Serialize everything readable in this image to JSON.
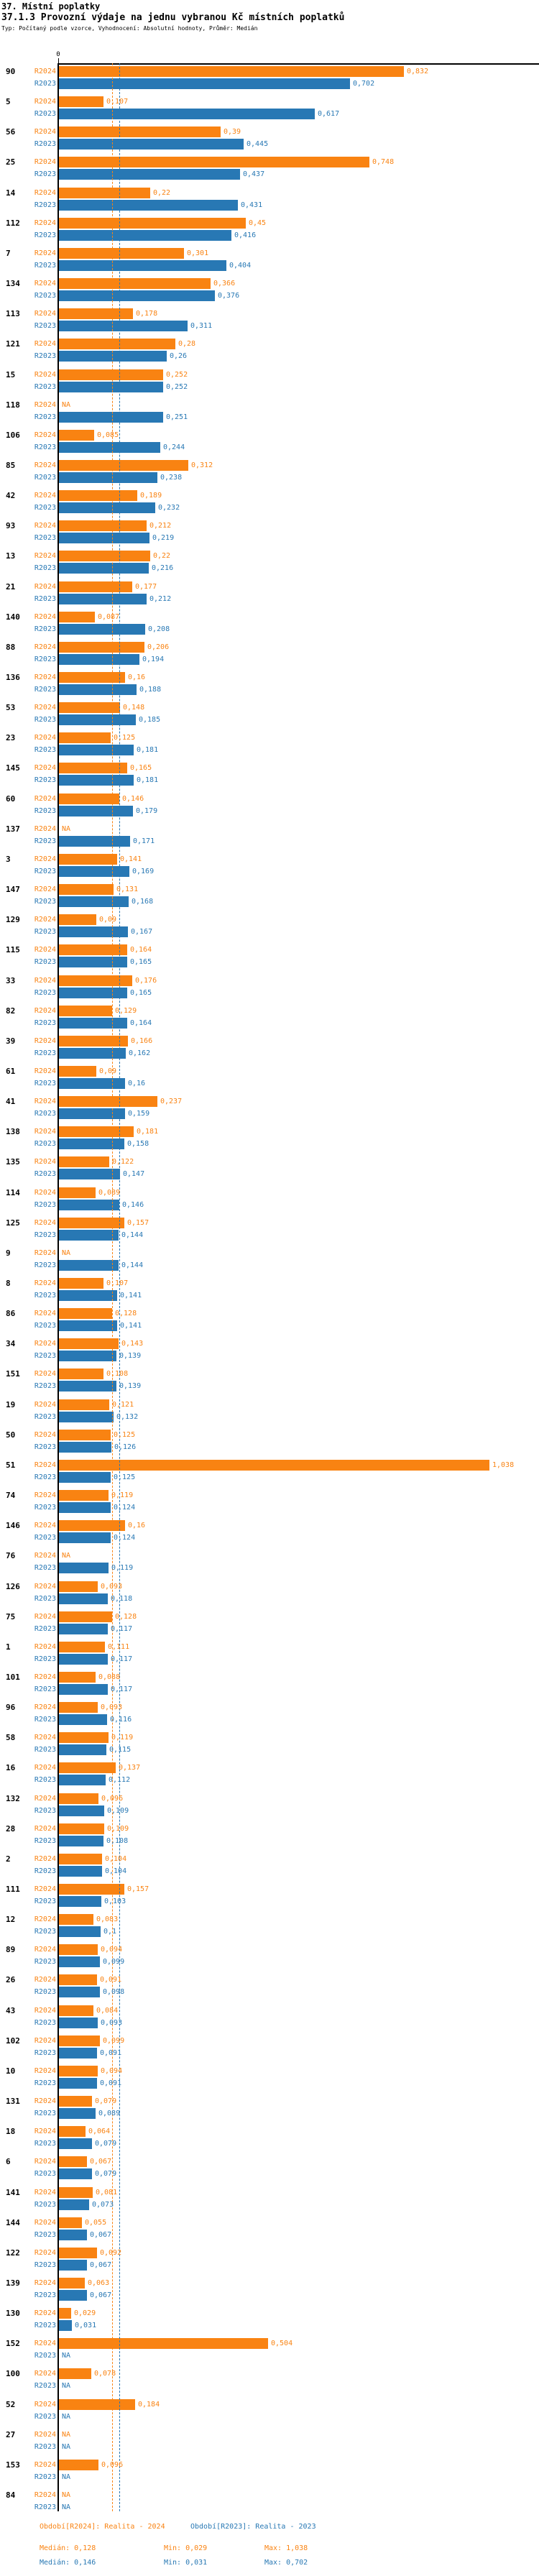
{
  "chart_data": {
    "type": "bar",
    "orientation": "horizontal",
    "title": "37. Místní poplatky",
    "subtitle": "37.1.3 Provozní výdaje na jednu vybranou Kč místních poplatků",
    "meta": "Typ: Počítaný podle vzorce, Vyhodnocení: Absolutní hodnoty, Průměr: Medián",
    "axis_origin": "0",
    "na_label": "NA",
    "series": [
      {
        "id": "R2024",
        "label": "R2024",
        "color": "#F98312",
        "period_text": "Období[R2024]: Realita - 2024",
        "median_text": "Medián: 0,128",
        "min_text": "Min: 0,029",
        "max_text": "Max: 1,038",
        "median_value": 0.128
      },
      {
        "id": "R2023",
        "label": "R2023",
        "color": "#2878B4",
        "period_text": "Období[R2023]: Realita - 2023",
        "median_text": "Medián: 0,146",
        "min_text": "Min: 0,031",
        "max_text": "Max: 0,702",
        "median_value": 0.146
      }
    ],
    "rows": [
      {
        "id": "90",
        "r2024": "0,832",
        "r2023": "0,702"
      },
      {
        "id": "5",
        "r2024": "0,107",
        "r2023": "0,617"
      },
      {
        "id": "56",
        "r2024": "0,39",
        "r2023": "0,445"
      },
      {
        "id": "25",
        "r2024": "0,748",
        "r2023": "0,437"
      },
      {
        "id": "14",
        "r2024": "0,22",
        "r2023": "0,431"
      },
      {
        "id": "112",
        "r2024": "0,45",
        "r2023": "0,416"
      },
      {
        "id": "7",
        "r2024": "0,301",
        "r2023": "0,404"
      },
      {
        "id": "134",
        "r2024": "0,366",
        "r2023": "0,376"
      },
      {
        "id": "113",
        "r2024": "0,178",
        "r2023": "0,311"
      },
      {
        "id": "121",
        "r2024": "0,28",
        "r2023": "0,26"
      },
      {
        "id": "15",
        "r2024": "0,252",
        "r2023": "0,252"
      },
      {
        "id": "118",
        "r2024": "NA",
        "r2023": "0,251"
      },
      {
        "id": "106",
        "r2024": "0,085",
        "r2023": "0,244"
      },
      {
        "id": "85",
        "r2024": "0,312",
        "r2023": "0,238"
      },
      {
        "id": "42",
        "r2024": "0,189",
        "r2023": "0,232"
      },
      {
        "id": "93",
        "r2024": "0,212",
        "r2023": "0,219"
      },
      {
        "id": "13",
        "r2024": "0,22",
        "r2023": "0,216"
      },
      {
        "id": "21",
        "r2024": "0,177",
        "r2023": "0,212"
      },
      {
        "id": "140",
        "r2024": "0,087",
        "r2023": "0,208"
      },
      {
        "id": "88",
        "r2024": "0,206",
        "r2023": "0,194"
      },
      {
        "id": "136",
        "r2024": "0,16",
        "r2023": "0,188"
      },
      {
        "id": "53",
        "r2024": "0,148",
        "r2023": "0,185"
      },
      {
        "id": "23",
        "r2024": "0,125",
        "r2023": "0,181"
      },
      {
        "id": "145",
        "r2024": "0,165",
        "r2023": "0,181"
      },
      {
        "id": "60",
        "r2024": "0,146",
        "r2023": "0,179"
      },
      {
        "id": "137",
        "r2024": "NA",
        "r2023": "0,171"
      },
      {
        "id": "3",
        "r2024": "0,141",
        "r2023": "0,169"
      },
      {
        "id": "147",
        "r2024": "0,131",
        "r2023": "0,168"
      },
      {
        "id": "129",
        "r2024": "0,09",
        "r2023": "0,167"
      },
      {
        "id": "115",
        "r2024": "0,164",
        "r2023": "0,165"
      },
      {
        "id": "33",
        "r2024": "0,176",
        "r2023": "0,165"
      },
      {
        "id": "82",
        "r2024": "0,129",
        "r2023": "0,164"
      },
      {
        "id": "39",
        "r2024": "0,166",
        "r2023": "0,162"
      },
      {
        "id": "61",
        "r2024": "0,09",
        "r2023": "0,16"
      },
      {
        "id": "41",
        "r2024": "0,237",
        "r2023": "0,159"
      },
      {
        "id": "138",
        "r2024": "0,181",
        "r2023": "0,158"
      },
      {
        "id": "135",
        "r2024": "0,122",
        "r2023": "0,147"
      },
      {
        "id": "114",
        "r2024": "0,089",
        "r2023": "0,146"
      },
      {
        "id": "125",
        "r2024": "0,157",
        "r2023": "0,144"
      },
      {
        "id": "9",
        "r2024": "NA",
        "r2023": "0,144"
      },
      {
        "id": "8",
        "r2024": "0,107",
        "r2023": "0,141"
      },
      {
        "id": "86",
        "r2024": "0,128",
        "r2023": "0,141"
      },
      {
        "id": "34",
        "r2024": "0,143",
        "r2023": "0,139"
      },
      {
        "id": "151",
        "r2024": "0,108",
        "r2023": "0,139"
      },
      {
        "id": "19",
        "r2024": "0,121",
        "r2023": "0,132"
      },
      {
        "id": "50",
        "r2024": "0,125",
        "r2023": "0,126"
      },
      {
        "id": "51",
        "r2024": "1,038",
        "r2023": "0,125"
      },
      {
        "id": "74",
        "r2024": "0,119",
        "r2023": "0,124"
      },
      {
        "id": "146",
        "r2024": "0,16",
        "r2023": "0,124"
      },
      {
        "id": "76",
        "r2024": "NA",
        "r2023": "0,119"
      },
      {
        "id": "126",
        "r2024": "0,093",
        "r2023": "0,118"
      },
      {
        "id": "75",
        "r2024": "0,128",
        "r2023": "0,117"
      },
      {
        "id": "1",
        "r2024": "0,111",
        "r2023": "0,117"
      },
      {
        "id": "101",
        "r2024": "0,088",
        "r2023": "0,117"
      },
      {
        "id": "96",
        "r2024": "0,093",
        "r2023": "0,116"
      },
      {
        "id": "58",
        "r2024": "0,119",
        "r2023": "0,115"
      },
      {
        "id": "16",
        "r2024": "0,137",
        "r2023": "0,112"
      },
      {
        "id": "132",
        "r2024": "0,096",
        "r2023": "0,109"
      },
      {
        "id": "28",
        "r2024": "0,109",
        "r2023": "0,108"
      },
      {
        "id": "2",
        "r2024": "0,104",
        "r2023": "0,104"
      },
      {
        "id": "111",
        "r2024": "0,157",
        "r2023": "0,103"
      },
      {
        "id": "12",
        "r2024": "0,083",
        "r2023": "0,1"
      },
      {
        "id": "89",
        "r2024": "0,094",
        "r2023": "0,099"
      },
      {
        "id": "26",
        "r2024": "0,091",
        "r2023": "0,098"
      },
      {
        "id": "43",
        "r2024": "0,084",
        "r2023": "0,093"
      },
      {
        "id": "102",
        "r2024": "0,099",
        "r2023": "0,091"
      },
      {
        "id": "10",
        "r2024": "0,094",
        "r2023": "0,091"
      },
      {
        "id": "131",
        "r2024": "0,079",
        "r2023": "0,089"
      },
      {
        "id": "18",
        "r2024": "0,064",
        "r2023": "0,079"
      },
      {
        "id": "6",
        "r2024": "0,067",
        "r2023": "0,079"
      },
      {
        "id": "141",
        "r2024": "0,081",
        "r2023": "0,073"
      },
      {
        "id": "144",
        "r2024": "0,055",
        "r2023": "0,067"
      },
      {
        "id": "122",
        "r2024": "0,092",
        "r2023": "0,067"
      },
      {
        "id": "139",
        "r2024": "0,063",
        "r2023": "0,067"
      },
      {
        "id": "130",
        "r2024": "0,029",
        "r2023": "0,031"
      },
      {
        "id": "152",
        "r2024": "0,504",
        "r2023": "NA"
      },
      {
        "id": "100",
        "r2024": "0,078",
        "r2023": "NA"
      },
      {
        "id": "52",
        "r2024": "0,184",
        "r2023": "NA"
      },
      {
        "id": "27",
        "r2024": "NA",
        "r2023": "NA"
      },
      {
        "id": "153",
        "r2024": "0,096",
        "r2023": "NA"
      },
      {
        "id": "84",
        "r2024": "NA",
        "r2023": "NA"
      }
    ]
  }
}
